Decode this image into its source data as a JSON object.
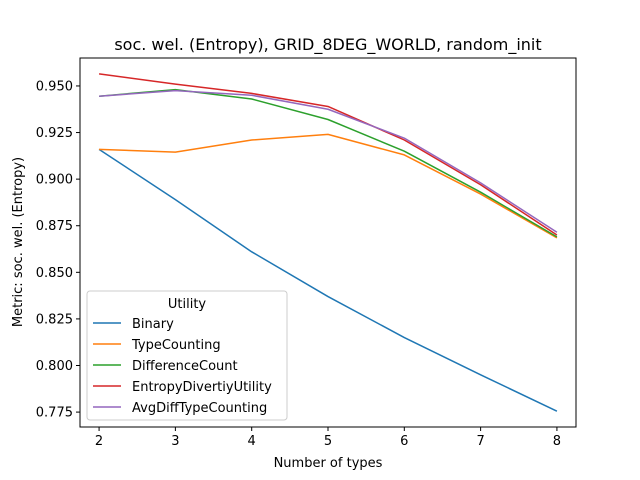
{
  "chart_data": {
    "type": "line",
    "title": "soc. wel. (Entropy), GRID_8DEG_WORLD, random_init",
    "xlabel": "Number of types",
    "ylabel": "Metric: soc. wel. (Entropy)",
    "x": [
      2,
      3,
      4,
      5,
      6,
      7,
      8
    ],
    "xlim": [
      1.75,
      8.25
    ],
    "ylim": [
      0.767,
      0.965
    ],
    "xticks": [
      2,
      3,
      4,
      5,
      6,
      7,
      8
    ],
    "xtick_labels": [
      "2",
      "3",
      "4",
      "5",
      "6",
      "7",
      "8"
    ],
    "yticks": [
      0.775,
      0.8,
      0.825,
      0.85,
      0.875,
      0.9,
      0.925,
      0.95
    ],
    "ytick_labels": [
      "0.775",
      "0.800",
      "0.825",
      "0.850",
      "0.875",
      "0.900",
      "0.925",
      "0.950"
    ],
    "grid": false,
    "legend": {
      "title": "Utility",
      "placement": "lower-left"
    },
    "series": [
      {
        "name": "Binary",
        "color": "#1f77b4",
        "values": [
          0.916,
          0.889,
          0.861,
          0.837,
          0.815,
          0.795,
          0.7755
        ]
      },
      {
        "name": "TypeCounting",
        "color": "#ff7f0e",
        "values": [
          0.916,
          0.9145,
          0.921,
          0.924,
          0.913,
          0.892,
          0.8685
        ]
      },
      {
        "name": "DifferenceCount",
        "color": "#2ca02c",
        "values": [
          0.9445,
          0.948,
          0.943,
          0.932,
          0.915,
          0.893,
          0.869
        ]
      },
      {
        "name": "EntropyDivertiyUtility",
        "color": "#d62728",
        "values": [
          0.9565,
          0.951,
          0.946,
          0.939,
          0.921,
          0.897,
          0.87
        ]
      },
      {
        "name": "AvgDiffTypeCounting",
        "color": "#9467bd",
        "values": [
          0.9445,
          0.9475,
          0.945,
          0.9375,
          0.922,
          0.898,
          0.8715
        ]
      }
    ]
  }
}
